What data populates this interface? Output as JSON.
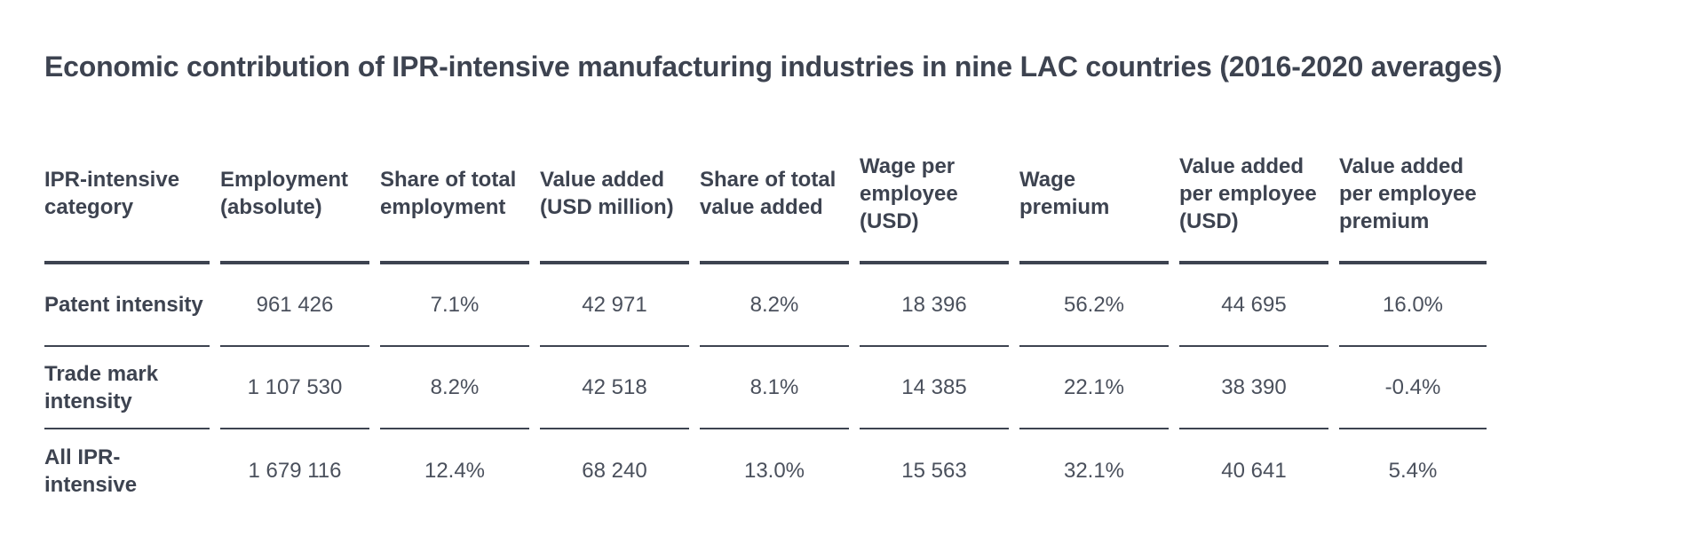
{
  "title": "Economic contribution of IPR-intensive manufacturing industries in nine LAC countries (2016-2020 averages)",
  "table": {
    "headers": [
      "IPR-intensive category",
      "Employment (absolute)",
      "Share of total employment",
      "Value added (USD million)",
      "Share of total value added",
      "Wage per employee (USD)",
      "Wage premium",
      "Value added per employee (USD)",
      "Value added per employee premium"
    ],
    "rows": [
      {
        "label": "Patent intensity",
        "values": [
          "961 426",
          "7.1%",
          "42 971",
          "8.2%",
          "18 396",
          "56.2%",
          "44 695",
          "16.0%"
        ]
      },
      {
        "label": "Trade mark intensity",
        "values": [
          "1 107 530",
          "8.2%",
          "42 518",
          "8.1%",
          "14 385",
          "22.1%",
          "38 390",
          "-0.4%"
        ]
      },
      {
        "label": "All IPR-intensive",
        "values": [
          "1 679 116",
          "12.4%",
          "68 240",
          "13.0%",
          "15 563",
          "32.1%",
          "40 641",
          "5.4%"
        ]
      }
    ]
  },
  "colors": {
    "text": "#3d4350",
    "rule": "#3d4350",
    "background": "#ffffff"
  }
}
